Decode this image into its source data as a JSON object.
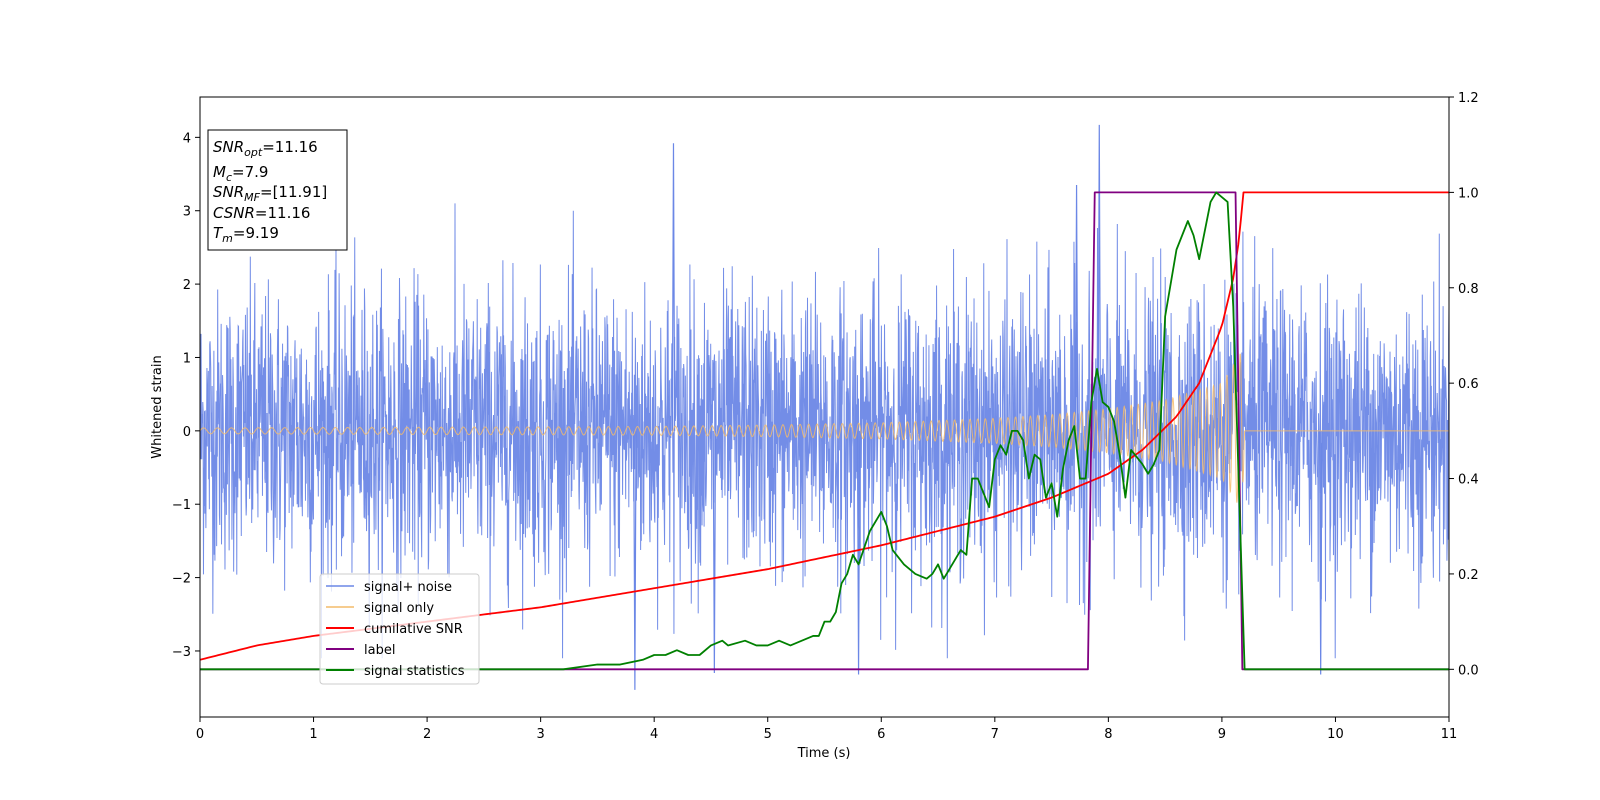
{
  "chart_data": {
    "type": "line",
    "xlabel": "Time (s)",
    "ylabel": "Whitened strain",
    "xlim": [
      0,
      11
    ],
    "ylim_left": [
      -3.9,
      4.55
    ],
    "ylim_right": [
      -0.1,
      1.2
    ],
    "x_ticks": [
      0,
      1,
      2,
      3,
      4,
      5,
      6,
      7,
      8,
      9,
      10,
      11
    ],
    "y_ticks_left": [
      -3,
      -2,
      -1,
      0,
      1,
      2,
      3,
      4
    ],
    "y_ticks_right": [
      0.0,
      0.2,
      0.4,
      0.6,
      0.8,
      1.0,
      1.2
    ],
    "x_tick_labels": [
      "0",
      "1",
      "2",
      "3",
      "4",
      "5",
      "6",
      "7",
      "8",
      "9",
      "10",
      "11"
    ],
    "y_tick_labels_left": [
      "−3",
      "−2",
      "−1",
      "0",
      "1",
      "2",
      "3",
      "4"
    ],
    "y_tick_labels_right": [
      "0.0",
      "0.2",
      "0.4",
      "0.6",
      "0.8",
      "1.0",
      "1.2"
    ],
    "grid": false,
    "legend_position": "lower-left",
    "series": [
      {
        "name": "signal+ noise",
        "axis": "left",
        "color": "#6b87e6",
        "style": "dense noise, typical amplitude ±1.5, peaks up to ±4.2",
        "noise_sigma": 1.0,
        "peaks": [
          [
            4.17,
            3.92
          ],
          [
            7.92,
            4.17
          ],
          [
            7.72,
            3.35
          ],
          [
            3.83,
            -3.53
          ],
          [
            5.8,
            -3.32
          ],
          [
            9.87,
            -3.32
          ],
          [
            4.53,
            -3.3
          ]
        ]
      },
      {
        "name": "signal only",
        "axis": "left",
        "color": "#f4bb6a",
        "style": "chirp whose envelope grows toward merger then drops to zero",
        "envelope": [
          [
            0,
            0.04
          ],
          [
            2,
            0.05
          ],
          [
            4,
            0.06
          ],
          [
            5,
            0.08
          ],
          [
            6,
            0.11
          ],
          [
            7,
            0.17
          ],
          [
            7.5,
            0.22
          ],
          [
            8,
            0.3
          ],
          [
            8.5,
            0.42
          ],
          [
            9,
            0.65
          ],
          [
            9.18,
            1.1
          ],
          [
            9.2,
            0.0
          ],
          [
            11,
            0.0
          ]
        ]
      },
      {
        "name": "cumilative SNR",
        "axis": "right",
        "color": "#ff0000",
        "points": [
          [
            0,
            0.02
          ],
          [
            0.5,
            0.05
          ],
          [
            1,
            0.07
          ],
          [
            2,
            0.1
          ],
          [
            3,
            0.13
          ],
          [
            4,
            0.17
          ],
          [
            5,
            0.21
          ],
          [
            6,
            0.26
          ],
          [
            6.5,
            0.29
          ],
          [
            7,
            0.32
          ],
          [
            7.5,
            0.36
          ],
          [
            8,
            0.41
          ],
          [
            8.3,
            0.46
          ],
          [
            8.6,
            0.53
          ],
          [
            8.8,
            0.6
          ],
          [
            9,
            0.72
          ],
          [
            9.1,
            0.82
          ],
          [
            9.15,
            0.9
          ],
          [
            9.19,
            1.0
          ],
          [
            11,
            1.0
          ]
        ]
      },
      {
        "name": "label",
        "axis": "right",
        "color": "#800080",
        "points": [
          [
            0,
            0.0
          ],
          [
            7.82,
            0.0
          ],
          [
            7.88,
            1.0
          ],
          [
            9.12,
            1.0
          ],
          [
            9.18,
            0.0
          ],
          [
            11,
            0.0
          ]
        ]
      },
      {
        "name": "signal statistics",
        "axis": "right",
        "color": "#008000",
        "points": [
          [
            0,
            0.0
          ],
          [
            2.5,
            0.0
          ],
          [
            3.2,
            0.0
          ],
          [
            3.5,
            0.01
          ],
          [
            3.7,
            0.01
          ],
          [
            3.9,
            0.02
          ],
          [
            4.0,
            0.03
          ],
          [
            4.1,
            0.03
          ],
          [
            4.2,
            0.04
          ],
          [
            4.3,
            0.03
          ],
          [
            4.4,
            0.03
          ],
          [
            4.5,
            0.05
          ],
          [
            4.6,
            0.06
          ],
          [
            4.65,
            0.05
          ],
          [
            4.8,
            0.06
          ],
          [
            4.9,
            0.05
          ],
          [
            5.0,
            0.05
          ],
          [
            5.1,
            0.06
          ],
          [
            5.2,
            0.05
          ],
          [
            5.3,
            0.06
          ],
          [
            5.4,
            0.07
          ],
          [
            5.45,
            0.07
          ],
          [
            5.5,
            0.1
          ],
          [
            5.55,
            0.1
          ],
          [
            5.6,
            0.12
          ],
          [
            5.65,
            0.18
          ],
          [
            5.7,
            0.2
          ],
          [
            5.75,
            0.24
          ],
          [
            5.8,
            0.22
          ],
          [
            5.9,
            0.29
          ],
          [
            6.0,
            0.33
          ],
          [
            6.05,
            0.3
          ],
          [
            6.1,
            0.25
          ],
          [
            6.2,
            0.22
          ],
          [
            6.3,
            0.2
          ],
          [
            6.4,
            0.19
          ],
          [
            6.45,
            0.2
          ],
          [
            6.5,
            0.22
          ],
          [
            6.55,
            0.19
          ],
          [
            6.6,
            0.21
          ],
          [
            6.7,
            0.25
          ],
          [
            6.75,
            0.24
          ],
          [
            6.8,
            0.4
          ],
          [
            6.85,
            0.4
          ],
          [
            6.95,
            0.34
          ],
          [
            7.0,
            0.44
          ],
          [
            7.05,
            0.47
          ],
          [
            7.1,
            0.45
          ],
          [
            7.15,
            0.5
          ],
          [
            7.2,
            0.5
          ],
          [
            7.25,
            0.48
          ],
          [
            7.3,
            0.4
          ],
          [
            7.35,
            0.45
          ],
          [
            7.4,
            0.44
          ],
          [
            7.45,
            0.36
          ],
          [
            7.5,
            0.39
          ],
          [
            7.55,
            0.32
          ],
          [
            7.6,
            0.42
          ],
          [
            7.65,
            0.48
          ],
          [
            7.7,
            0.51
          ],
          [
            7.75,
            0.4
          ],
          [
            7.8,
            0.4
          ],
          [
            7.85,
            0.56
          ],
          [
            7.9,
            0.63
          ],
          [
            7.95,
            0.56
          ],
          [
            8.0,
            0.55
          ],
          [
            8.05,
            0.52
          ],
          [
            8.1,
            0.45
          ],
          [
            8.15,
            0.36
          ],
          [
            8.2,
            0.46
          ],
          [
            8.3,
            0.43
          ],
          [
            8.35,
            0.41
          ],
          [
            8.4,
            0.43
          ],
          [
            8.45,
            0.46
          ],
          [
            8.5,
            0.74
          ],
          [
            8.6,
            0.88
          ],
          [
            8.7,
            0.94
          ],
          [
            8.75,
            0.91
          ],
          [
            8.8,
            0.86
          ],
          [
            8.9,
            0.98
          ],
          [
            8.95,
            1.0
          ],
          [
            9.05,
            0.98
          ],
          [
            9.1,
            0.76
          ],
          [
            9.2,
            0.0
          ],
          [
            11,
            0.0
          ]
        ]
      }
    ],
    "info_box": {
      "lines": [
        {
          "label": "SNR",
          "sub": "opt",
          "value": "=11.16"
        },
        {
          "label": "M",
          "sub": "c",
          "value": "=7.9"
        },
        {
          "label": "SNR",
          "sub": "MF",
          "value": "=[11.91]"
        },
        {
          "label": "CSNR",
          "sub": "",
          "value": "=11.16"
        },
        {
          "label": "T",
          "sub": "m",
          "value": "=9.19"
        }
      ]
    }
  }
}
